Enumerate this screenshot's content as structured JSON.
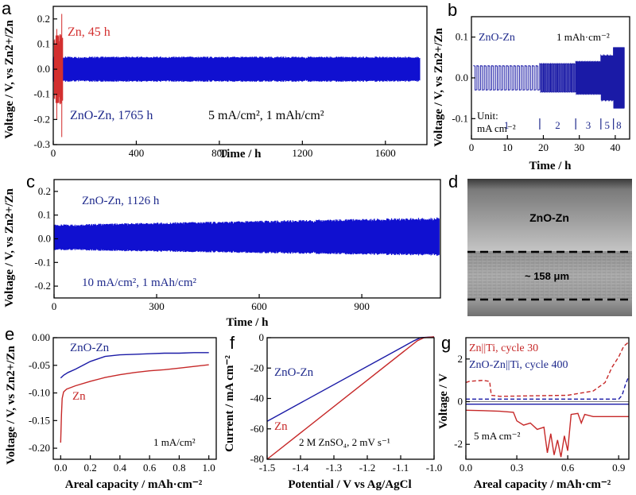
{
  "panel_labels": {
    "a": "a",
    "b": "b",
    "c": "c",
    "d": "d",
    "e": "e",
    "f": "f",
    "g": "g"
  },
  "colors": {
    "red": "#c62828",
    "blue": "#1a1aa6",
    "ann_blue": "#1f2a8c",
    "black": "#000000"
  },
  "chart_data": [
    {
      "id": "a",
      "type": "line",
      "xlabel": "Time / h",
      "ylabel": "Voltage / V, vs Zn2+/Zn",
      "xlim": [
        0,
        1800
      ],
      "ylim": [
        -0.3,
        0.25
      ],
      "xticks": [
        0,
        400,
        800,
        1200,
        1600
      ],
      "yticks": [
        -0.3,
        -0.2,
        -0.1,
        0.0,
        0.1,
        0.2
      ],
      "ytick_labels": [
        "-0.3",
        "-0.2",
        "-0.1",
        "0.0",
        "0.1",
        "0.2"
      ],
      "series": [
        {
          "name": "Zn, 45 h",
          "color": "#d32f2f",
          "x_end": 45,
          "amplitude": 0.1,
          "spike_max": 0.22,
          "spike_min": -0.27
        },
        {
          "name": "ZnO-Zn, 1765 h",
          "color": "#1010d0",
          "x_end": 1765,
          "amplitude": 0.05
        }
      ],
      "annotations": {
        "zn": "Zn, 45 h",
        "zno": "ZnO-Zn, 1765 h",
        "cond": "5 mA/cm², 1 mAh/cm²"
      }
    },
    {
      "id": "b",
      "type": "line",
      "xlabel": "Time / h",
      "ylabel": "Voltage / V, vs Zn2+/Zn",
      "xlim": [
        0,
        44
      ],
      "ylim": [
        -0.15,
        0.15
      ],
      "xticks": [
        0,
        10,
        20,
        30,
        40
      ],
      "yticks": [
        -0.1,
        0.0,
        0.1
      ],
      "ytick_labels": [
        "-0.1",
        "0.0",
        "0.1"
      ],
      "segments": [
        {
          "current": 1,
          "t_start": 0.5,
          "t_end": 19,
          "amplitude": 0.03,
          "cycles": 18
        },
        {
          "current": 2,
          "t_start": 19,
          "t_end": 29,
          "amplitude": 0.035,
          "cycles": 20
        },
        {
          "current": 3,
          "t_start": 29,
          "t_end": 36,
          "amplitude": 0.04,
          "cycles": 22
        },
        {
          "current": 5,
          "t_start": 36,
          "t_end": 39.5,
          "amplitude": 0.055,
          "cycles": 18
        },
        {
          "current": 8,
          "t_start": 39.5,
          "t_end": 42.5,
          "amplitude": 0.075,
          "cycles": 22
        }
      ],
      "annotations": {
        "label": "ZnO-Zn",
        "cap": "1 mAh·cm⁻²",
        "unit1": "Unit:",
        "unit2": "mA cm⁻²",
        "rates": [
          "1",
          "2",
          "3",
          "5",
          "8"
        ]
      }
    },
    {
      "id": "c",
      "type": "line",
      "xlabel": "Time / h",
      "ylabel": "Voltage / V, vs Zn2+/Zn",
      "xlim": [
        0,
        1130
      ],
      "ylim": [
        -0.25,
        0.25
      ],
      "xticks": [
        0,
        300,
        600,
        900
      ],
      "yticks": [
        -0.2,
        -0.1,
        0.0,
        0.1,
        0.2
      ],
      "ytick_labels": [
        "-0.2",
        "-0.1",
        "0.0",
        "0.1",
        "0.2"
      ],
      "series": [
        {
          "name": "ZnO-Zn, 1126 h",
          "color": "#1010d0",
          "x_end": 1126,
          "amplitude_start": 0.06,
          "amplitude_end": 0.09
        }
      ],
      "annotations": {
        "label": "ZnO-Zn, 1126 h",
        "cond": "10 mA/cm², 1 mAh/cm²"
      }
    },
    {
      "id": "e",
      "type": "line",
      "xlabel": "Areal capacity / mAh·cm⁻²",
      "ylabel": "Voltage / V, vs Zn2+/Zn",
      "xlim": [
        -0.05,
        1.05
      ],
      "ylim": [
        -0.22,
        0.0
      ],
      "xticks": [
        0.0,
        0.2,
        0.4,
        0.6,
        0.8,
        1.0
      ],
      "xtick_labels": [
        "0.0",
        "0.2",
        "0.4",
        "0.6",
        "0.8",
        "1.0"
      ],
      "yticks": [
        -0.2,
        -0.15,
        -0.1,
        -0.05,
        0.0
      ],
      "ytick_labels": [
        "-0.20",
        "-0.15",
        "-0.10",
        "-0.05",
        "0.00"
      ],
      "series": [
        {
          "name": "ZnO-Zn",
          "color": "#1a1aa6",
          "x": [
            0,
            0.02,
            0.05,
            0.1,
            0.15,
            0.2,
            0.3,
            0.4,
            0.5,
            0.6,
            0.7,
            0.8,
            0.9,
            1.0
          ],
          "y": [
            -0.073,
            -0.068,
            -0.063,
            -0.057,
            -0.05,
            -0.043,
            -0.034,
            -0.031,
            -0.03,
            -0.029,
            -0.028,
            -0.028,
            -0.027,
            -0.027
          ]
        },
        {
          "name": "Zn",
          "color": "#c62828",
          "x": [
            0,
            0.005,
            0.01,
            0.02,
            0.04,
            0.07,
            0.1,
            0.2,
            0.3,
            0.4,
            0.5,
            0.6,
            0.7,
            0.8,
            0.9,
            1.0
          ],
          "y": [
            -0.19,
            -0.14,
            -0.11,
            -0.098,
            -0.093,
            -0.09,
            -0.087,
            -0.079,
            -0.072,
            -0.067,
            -0.063,
            -0.06,
            -0.058,
            -0.055,
            -0.052,
            -0.049
          ]
        }
      ],
      "annotations": {
        "zno": "ZnO-Zn",
        "zn": "Zn",
        "cond": "1 mA/cm²"
      }
    },
    {
      "id": "f",
      "type": "line",
      "xlabel": "Potential / V vs Ag/AgCl",
      "ylabel": "Current / mA cm⁻²",
      "xlim": [
        -1.5,
        -1.0
      ],
      "ylim": [
        -80,
        0
      ],
      "xticks": [
        -1.5,
        -1.4,
        -1.3,
        -1.2,
        -1.1,
        -1.0
      ],
      "xtick_labels": [
        "-1.5",
        "-1.4",
        "-1.3",
        "-1.2",
        "-1.1",
        "-1.0"
      ],
      "yticks": [
        -80,
        -60,
        -40,
        -20,
        0
      ],
      "ytick_labels": [
        "-80",
        "-60",
        "-40",
        "-20",
        "0"
      ],
      "series": [
        {
          "name": "ZnO-Zn",
          "color": "#1a1aa6",
          "x": [
            -1.5,
            -1.06,
            -1.04,
            -1.0
          ],
          "y": [
            -55,
            -2,
            0,
            0.5
          ]
        },
        {
          "name": "Zn",
          "color": "#c62828",
          "x": [
            -1.5,
            -1.05,
            -1.03,
            -1.0
          ],
          "y": [
            -80,
            -2,
            0,
            0.5
          ]
        }
      ],
      "annotations": {
        "zno": "ZnO-Zn",
        "zn": "Zn",
        "cond": "2 M ZnSO₄, 2 mV s⁻¹"
      }
    },
    {
      "id": "g",
      "type": "line",
      "xlabel": "Areal capacity / mAh·cm⁻²",
      "ylabel": "Voltage / V",
      "xlim": [
        0,
        0.96
      ],
      "ylim": [
        -2.7,
        3.0
      ],
      "xticks": [
        0.0,
        0.3,
        0.6,
        0.9
      ],
      "xtick_labels": [
        "0.0",
        "0.3",
        "0.6",
        "0.9"
      ],
      "yticks": [
        -2,
        0,
        2
      ],
      "ytick_labels": [
        "-2",
        "0",
        "2"
      ],
      "series": [
        {
          "name": "Zn||Ti, cycle 30 (charge)",
          "color": "#c62828",
          "dash": true,
          "x": [
            0,
            0.02,
            0.1,
            0.14,
            0.15,
            0.2,
            0.6,
            0.75,
            0.82,
            0.86,
            0.9,
            0.93,
            0.96
          ],
          "y": [
            0.9,
            0.95,
            1.0,
            0.95,
            0.3,
            0.25,
            0.3,
            0.5,
            0.9,
            1.6,
            2.1,
            2.6,
            2.8
          ]
        },
        {
          "name": "Zn||Ti, cycle 30 (plating)",
          "color": "#c62828",
          "dash": false,
          "x": [
            0,
            0.1,
            0.2,
            0.28,
            0.3,
            0.34,
            0.38,
            0.42,
            0.46,
            0.48,
            0.5,
            0.52,
            0.54,
            0.56,
            0.58,
            0.6,
            0.62,
            0.66,
            0.68,
            0.7,
            0.75,
            0.96
          ],
          "y": [
            -0.4,
            -0.42,
            -0.45,
            -0.5,
            -0.9,
            -1.1,
            -1.0,
            -1.3,
            -1.2,
            -2.4,
            -1.5,
            -2.5,
            -1.8,
            -2.6,
            -1.6,
            -2.3,
            -0.6,
            -0.55,
            -1.0,
            -0.6,
            -0.7,
            -0.7
          ]
        },
        {
          "name": "ZnO-Zn||Ti, cycle 400",
          "color": "#1a1aa6",
          "dash": true,
          "x": [
            0,
            0.9,
            0.92,
            0.94,
            0.96
          ],
          "y": [
            0.12,
            0.12,
            0.3,
            0.8,
            1.2
          ]
        },
        {
          "name": "ZnO-Zn||Ti, cycle 400 (plating)",
          "color": "#1a1aa6",
          "dash": false,
          "x": [
            0,
            0.96
          ],
          "y": [
            -0.12,
            -0.12
          ]
        }
      ],
      "annotations": {
        "zn": "Zn||Ti, cycle 30",
        "zno": "ZnO-Zn||Ti, cycle 400",
        "cond": "5 mA cm⁻²"
      }
    }
  ],
  "sem": {
    "label": "ZnO-Zn",
    "thickness": "~ 158 μm"
  }
}
